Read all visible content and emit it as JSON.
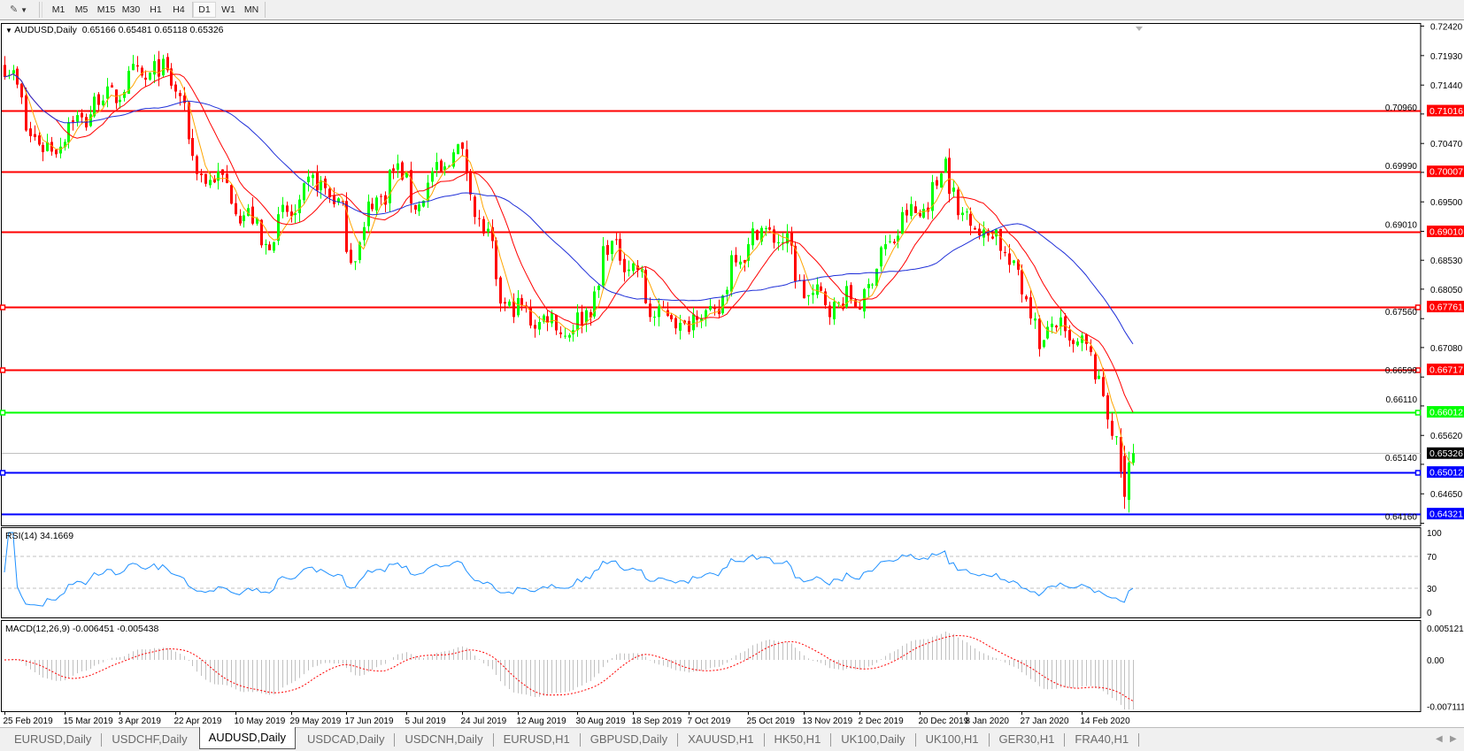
{
  "toolbar": {
    "chart_tools_icon": "pencil-tools-icon",
    "timeframes": [
      "M1",
      "M5",
      "M15",
      "M30",
      "H1",
      "H4",
      "D1",
      "W1",
      "MN"
    ],
    "active_timeframe": "D1"
  },
  "chart": {
    "symbol_title": "AUDUSD,Daily",
    "ohlc_text": "0.65166 0.65481 0.65118 0.65326",
    "price_ticks": [
      "0.72420",
      "0.71930",
      "0.71440",
      "0.70960",
      "0.70470",
      "0.69990",
      "0.69500",
      "0.69010",
      "0.68530",
      "0.68050",
      "0.67560",
      "0.67080",
      "0.66590",
      "0.66110",
      "0.65620",
      "0.65140",
      "0.64650",
      "0.64160"
    ],
    "horizontal_lines": [
      {
        "label": "0.71016",
        "value": 0.71016,
        "color": "#ff0000",
        "selected": false
      },
      {
        "label": "0.70007",
        "value": 0.70007,
        "color": "#ff0000",
        "selected": false
      },
      {
        "label": "0.69010",
        "value": 0.6901,
        "color": "#ff0000",
        "selected": false
      },
      {
        "label": "0.67761",
        "value": 0.67761,
        "color": "#ff0000",
        "selected": true
      },
      {
        "label": "0.66717",
        "value": 0.66717,
        "color": "#ff0000",
        "selected": true
      },
      {
        "label": "0.66012",
        "value": 0.66012,
        "color": "#00ff00",
        "selected": true
      },
      {
        "label": "0.65012",
        "value": 0.65012,
        "color": "#0000ff",
        "selected": true
      },
      {
        "label": "0.64321",
        "value": 0.64321,
        "color": "#0000ff",
        "selected": false
      }
    ],
    "bid_line": {
      "label": "0.65326",
      "value": 0.65326,
      "color": "#c0c0c0"
    },
    "bull_color": "#00ff00",
    "bear_color": "#ff0000",
    "ma_colors": [
      "#ffa500",
      "#ff0000",
      "#1f2fd8"
    ]
  },
  "rsi": {
    "label": "RSI(14) 34.1669",
    "ticks": [
      "100",
      "70",
      "30",
      "0"
    ],
    "line_color": "#1e90ff"
  },
  "macd": {
    "label": "MACD(12,26,9) -0.006451 -0.005438",
    "ticks": [
      "0.005121",
      "0.00",
      "-0.007111"
    ],
    "histogram_color": "#c0c0c0",
    "signal_color": "#ff0000"
  },
  "time_axis": {
    "labels": [
      "25 Feb 2019",
      "15 Mar 2019",
      "3 Apr 2019",
      "22 Apr 2019",
      "10 May 2019",
      "29 May 2019",
      "17 Jun 2019",
      "5 Jul 2019",
      "24 Jul 2019",
      "12 Aug 2019",
      "30 Aug 2019",
      "18 Sep 2019",
      "7 Oct 2019",
      "25 Oct 2019",
      "13 Nov 2019",
      "2 Dec 2019",
      "20 Dec 2019",
      "8 Jan 2020",
      "27 Jan 2020",
      "14 Feb 2020"
    ]
  },
  "tabs": [
    {
      "label": "EURUSD,Daily",
      "active": false
    },
    {
      "label": "USDCHF,Daily",
      "active": false
    },
    {
      "label": "AUDUSD,Daily",
      "active": true
    },
    {
      "label": "USDCAD,Daily",
      "active": false
    },
    {
      "label": "USDCNH,Daily",
      "active": false
    },
    {
      "label": "EURUSD,H1",
      "active": false
    },
    {
      "label": "GBPUSD,Daily",
      "active": false
    },
    {
      "label": "XAUUSD,H1",
      "active": false
    },
    {
      "label": "HK50,H1",
      "active": false
    },
    {
      "label": "UK100,Daily",
      "active": false
    },
    {
      "label": "UK100,H1",
      "active": false
    },
    {
      "label": "GER30,H1",
      "active": false
    },
    {
      "label": "FRA40,H1",
      "active": false
    }
  ],
  "chart_data": {
    "type": "candlestick",
    "title": "AUDUSD,Daily",
    "last_bar": {
      "open": 0.65166,
      "high": 0.65481,
      "low": 0.65118,
      "close": 0.65326
    },
    "ylim": [
      0.6416,
      0.7242
    ],
    "approx_close_path": [
      [
        "2019-02-25",
        0.7175
      ],
      [
        "2019-03-08",
        0.7028
      ],
      [
        "2019-03-26",
        0.7113
      ],
      [
        "2019-04-14",
        0.7172
      ],
      [
        "2019-04-23",
        0.7137
      ],
      [
        "2019-04-26",
        0.7013
      ],
      [
        "2019-05-08",
        0.6974
      ],
      [
        "2019-05-20",
        0.6881
      ],
      [
        "2019-06-09",
        0.6997
      ],
      [
        "2019-06-18",
        0.6866
      ],
      [
        "2019-07-01",
        0.7005
      ],
      [
        "2019-07-10",
        0.6951
      ],
      [
        "2019-07-22",
        0.7044
      ],
      [
        "2019-07-28",
        0.6959
      ],
      [
        "2019-08-05",
        0.6803
      ],
      [
        "2019-08-09",
        0.6772
      ],
      [
        "2019-08-27",
        0.6741
      ],
      [
        "2019-09-02",
        0.6749
      ],
      [
        "2019-09-09",
        0.6866
      ],
      [
        "2019-09-15",
        0.6873
      ],
      [
        "2019-09-24",
        0.6772
      ],
      [
        "2019-10-03",
        0.6749
      ],
      [
        "2019-10-16",
        0.6772
      ],
      [
        "2019-10-22",
        0.6866
      ],
      [
        "2019-11-03",
        0.6912
      ],
      [
        "2019-11-15",
        0.6788
      ],
      [
        "2019-12-01",
        0.678
      ],
      [
        "2019-12-12",
        0.6897
      ],
      [
        "2019-12-28",
        0.6974
      ],
      [
        "2019-12-31",
        0.702
      ],
      [
        "2020-01-06",
        0.6928
      ],
      [
        "2020-01-16",
        0.6897
      ],
      [
        "2020-01-25",
        0.6834
      ],
      [
        "2020-02-01",
        0.6711
      ],
      [
        "2020-02-05",
        0.6741
      ],
      [
        "2020-02-12",
        0.6718
      ],
      [
        "2020-02-17",
        0.6695
      ],
      [
        "2020-02-24",
        0.6601
      ],
      [
        "2020-02-28",
        0.6462
      ],
      [
        "2020-03-03",
        0.65326
      ]
    ],
    "label_dates": [
      "2019-02-25",
      "2019-03-15",
      "2019-04-03",
      "2019-04-22",
      "2019-05-10",
      "2019-05-29",
      "2019-06-17",
      "2019-07-05",
      "2019-07-24",
      "2019-08-12",
      "2019-08-30",
      "2019-09-18",
      "2019-10-07",
      "2019-10-25",
      "2019-11-13",
      "2019-12-02",
      "2019-12-20",
      "2020-01-08",
      "2020-01-27",
      "2020-02-14"
    ]
  }
}
